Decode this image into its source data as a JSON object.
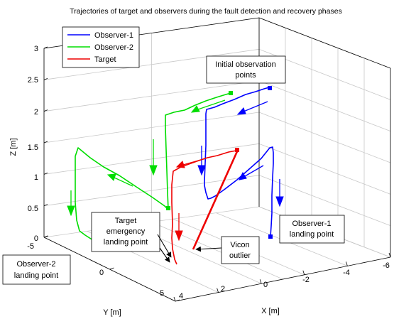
{
  "chart_data": {
    "type": "line3d",
    "title": "Trajectories of target and observers during the fault detection and recovery phases",
    "xlabel": "X [m]",
    "ylabel": "Y [m]",
    "zlabel": "Z [m]",
    "xlim": [
      -6,
      4
    ],
    "ylim": [
      -5,
      5
    ],
    "zlim": [
      0,
      3
    ],
    "grid": true,
    "x_ticks": [
      "4",
      "2",
      "0",
      "-2",
      "-4",
      "-6"
    ],
    "y_ticks": [
      "-5",
      "0",
      "5"
    ],
    "z_ticks": [
      "0",
      "0.5",
      "1",
      "1.5",
      "2",
      "2.5",
      "3"
    ],
    "legend": {
      "position": "top-left",
      "entries": [
        {
          "label": "Observer-1",
          "color": "#0000ff"
        },
        {
          "label": "Observer-2",
          "color": "#00dd00"
        },
        {
          "label": "Target",
          "color": "#ee0000"
        }
      ]
    },
    "annotations": [
      {
        "text": [
          "Initial observation",
          "points"
        ]
      },
      {
        "text": [
          "Target",
          "emergency",
          "landing point"
        ]
      },
      {
        "text": [
          "Vicon",
          "outlier"
        ]
      },
      {
        "text": [
          "Observer-1",
          "landing point"
        ]
      },
      {
        "text": [
          "Observer-2",
          "landing point"
        ]
      }
    ]
  }
}
